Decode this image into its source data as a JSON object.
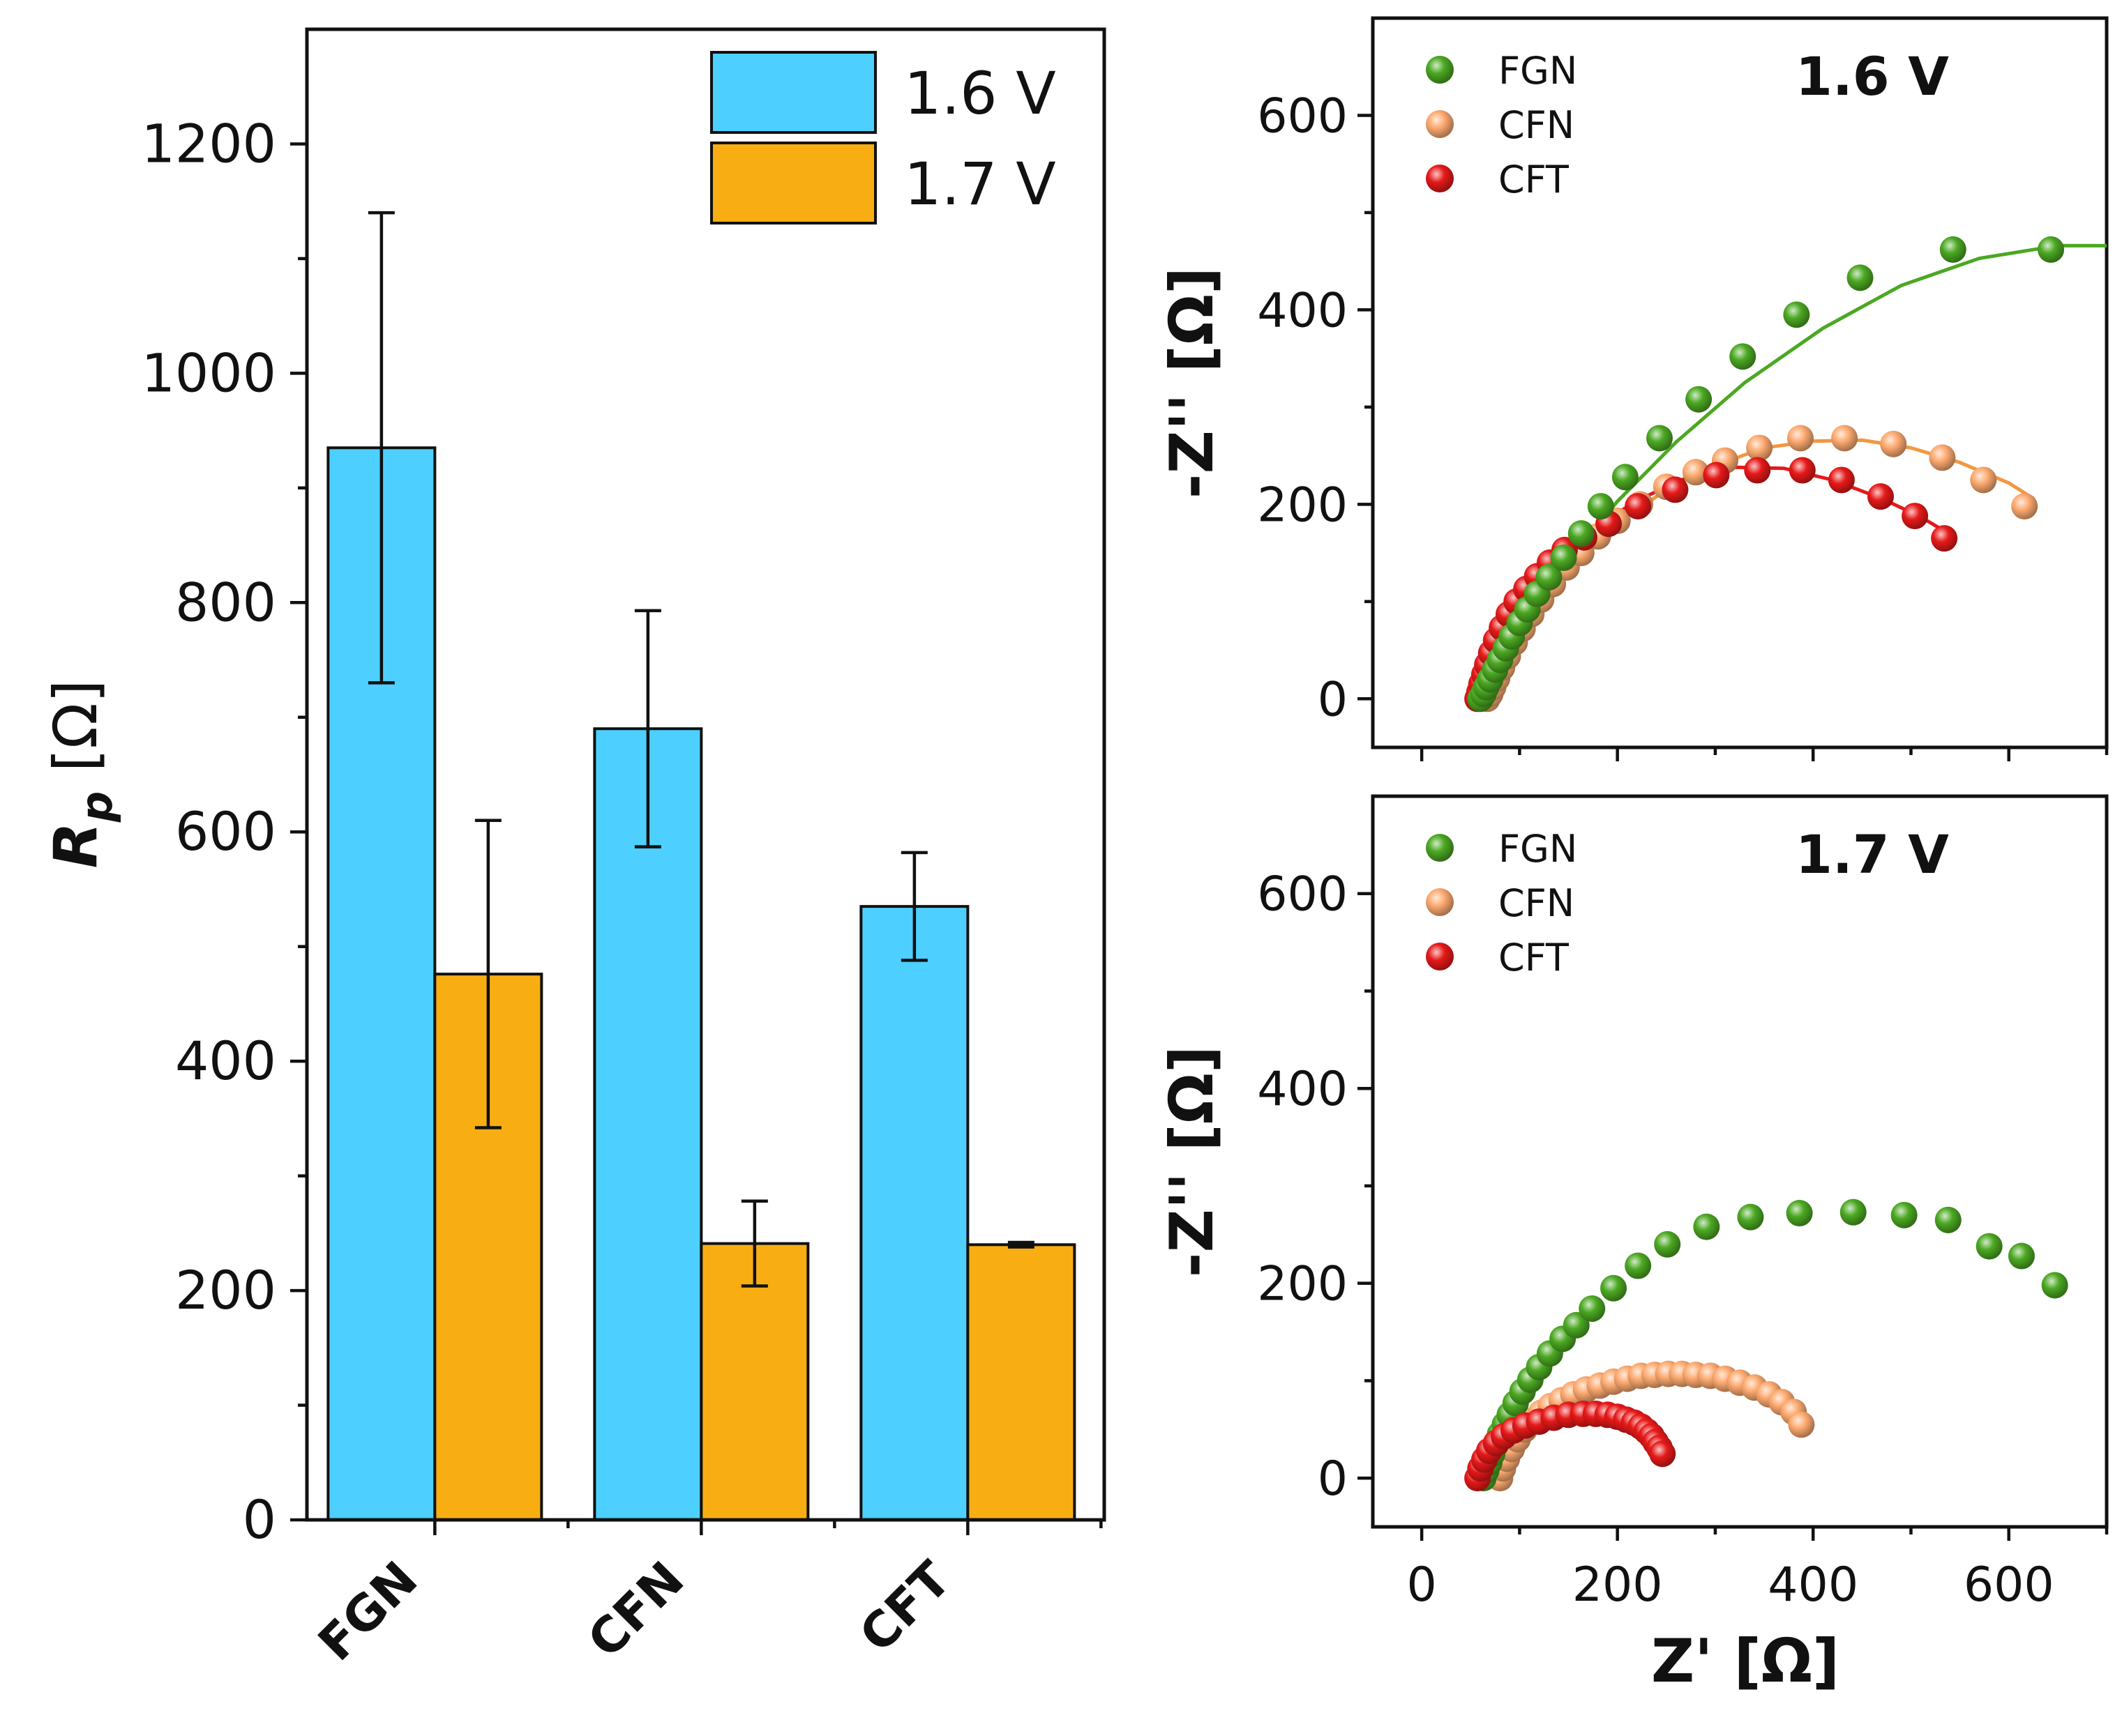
{
  "chart_data": [
    {
      "id": "rp-bars",
      "type": "bar",
      "title": "",
      "xlabel": "",
      "ylabel": "R",
      "ylabel_sub": "p",
      "ylabel_unit": "[Ω]",
      "ylim": [
        0,
        1300
      ],
      "yticks": [
        0,
        200,
        400,
        600,
        800,
        1000,
        1200
      ],
      "categories": [
        "FGN",
        "CFN",
        "CFT"
      ],
      "series": [
        {
          "name": "1.6 V",
          "color": "#4dd0ff",
          "values": [
            935,
            690,
            535
          ],
          "errors": [
            205,
            103,
            47
          ]
        },
        {
          "name": "1.7 V",
          "color": "#f8ae12",
          "values": [
            476,
            241,
            240
          ],
          "errors": [
            134,
            37,
            2
          ]
        }
      ],
      "legend": "top-right"
    },
    {
      "id": "nyquist-16",
      "type": "scatter",
      "title": "1.6 V",
      "xlabel": "",
      "ylabel": "-Z'' [Ω]",
      "xlim": [
        -50,
        700
      ],
      "ylim": [
        -50,
        700
      ],
      "yticks": [
        0,
        200,
        400,
        600
      ],
      "legend": "top-left",
      "series": [
        {
          "name": "FGN",
          "color": "#4ba822",
          "fit": true,
          "x": [
            60,
            63,
            66,
            70,
            75,
            80,
            86,
            92,
            100,
            108,
            118,
            130,
            145,
            163,
            183,
            208,
            243,
            283,
            328,
            383,
            448,
            543,
            643
          ],
          "y": [
            0,
            5,
            12,
            20,
            30,
            40,
            52,
            64,
            78,
            92,
            108,
            125,
            145,
            170,
            198,
            228,
            268,
            308,
            352,
            395,
            433,
            462,
            462
          ],
          "fit_x": [
            60,
            80,
            110,
            150,
            200,
            260,
            330,
            410,
            490,
            570,
            650,
            700
          ],
          "fit_y": [
            0,
            38,
            88,
            143,
            203,
            264,
            325,
            381,
            425,
            453,
            466,
            466
          ]
        },
        {
          "name": "CFN",
          "color": "#fdaa70",
          "fit": true,
          "x": [
            67,
            70,
            73,
            77,
            82,
            88,
            95,
            103,
            112,
            122,
            134,
            148,
            163,
            180,
            200,
            223,
            250,
            280,
            310,
            345,
            387,
            432,
            482,
            532,
            574,
            616
          ],
          "y": [
            0,
            5,
            12,
            21,
            32,
            44,
            58,
            72,
            87,
            102,
            118,
            135,
            150,
            167,
            183,
            200,
            218,
            233,
            245,
            258,
            268,
            268,
            262,
            248,
            225,
            198
          ],
          "fit_x": [
            67,
            90,
            120,
            160,
            200,
            250,
            300,
            350,
            400,
            450,
            500,
            550,
            600,
            625
          ],
          "fit_y": [
            0,
            45,
            92,
            140,
            180,
            215,
            240,
            258,
            265,
            266,
            258,
            243,
            222,
            206
          ],
          "fit_color": "#f3973f"
        },
        {
          "name": "CFT",
          "color": "#e61919",
          "fit": true,
          "x": [
            57,
            59,
            61,
            64,
            67,
            71,
            76,
            82,
            89,
            97,
            107,
            118,
            131,
            146,
            166,
            191,
            221,
            259,
            301,
            343,
            389,
            429,
            469,
            504,
            534
          ],
          "y": [
            0,
            7,
            15,
            25,
            35,
            47,
            60,
            73,
            87,
            100,
            113,
            126,
            140,
            153,
            166,
            180,
            198,
            215,
            230,
            235,
            235,
            225,
            208,
            188,
            165
          ],
          "fit_x": [
            57,
            75,
            100,
            140,
            180,
            220,
            270,
            320,
            370,
            420,
            470,
            510,
            535
          ],
          "fit_y": [
            0,
            55,
            100,
            145,
            178,
            204,
            227,
            238,
            237,
            225,
            206,
            187,
            172
          ]
        }
      ]
    },
    {
      "id": "nyquist-17",
      "type": "scatter",
      "title": "1.7 V",
      "xlabel": "Z' [Ω]",
      "ylabel": "-Z'' [Ω]",
      "xlim": [
        -50,
        700
      ],
      "ylim": [
        -50,
        700
      ],
      "xticks": [
        0,
        200,
        400,
        600
      ],
      "yticks": [
        0,
        200,
        400,
        600
      ],
      "legend": "top-left",
      "series": [
        {
          "name": "FGN",
          "color": "#4ba822",
          "fit": false,
          "x": [
            63,
            66,
            69,
            72,
            76,
            80,
            85,
            90,
            96,
            103,
            111,
            120,
            131,
            144,
            158,
            174,
            196,
            221,
            251,
            291,
            336,
            386,
            441,
            493,
            538,
            580,
            613,
            647
          ],
          "y": [
            0,
            8,
            16,
            25,
            35,
            45,
            55,
            65,
            77,
            89,
            101,
            114,
            128,
            143,
            157,
            174,
            195,
            218,
            240,
            258,
            268,
            272,
            273,
            270,
            265,
            238,
            228,
            198
          ],
          "fit_x": [],
          "fit_y": []
        },
        {
          "name": "CFN",
          "color": "#fdaa70",
          "fit": false,
          "x": [
            80,
            83,
            87,
            92,
            98,
            105,
            113,
            122,
            132,
            143,
            155,
            168,
            182,
            196,
            210,
            224,
            238,
            252,
            266,
            280,
            295,
            310,
            325,
            340,
            355,
            368,
            380,
            388
          ],
          "y": [
            0,
            10,
            20,
            30,
            40,
            50,
            59,
            67,
            74,
            80,
            86,
            91,
            95,
            99,
            102,
            105,
            106,
            107,
            107,
            106,
            105,
            102,
            98,
            93,
            86,
            78,
            68,
            55
          ],
          "fit_x": [],
          "fit_y": []
        },
        {
          "name": "CFT",
          "color": "#e61919",
          "fit": false,
          "x": [
            57,
            60,
            64,
            69,
            76,
            84,
            94,
            106,
            120,
            135,
            150,
            165,
            178,
            190,
            200,
            209,
            217,
            224,
            230,
            235,
            239,
            243,
            246
          ],
          "y": [
            0,
            10,
            19,
            28,
            36,
            43,
            49,
            54,
            58,
            62,
            65,
            66,
            66,
            65,
            63,
            60,
            57,
            53,
            48,
            43,
            37,
            31,
            25
          ],
          "fit_x": [],
          "fit_y": []
        }
      ]
    }
  ]
}
